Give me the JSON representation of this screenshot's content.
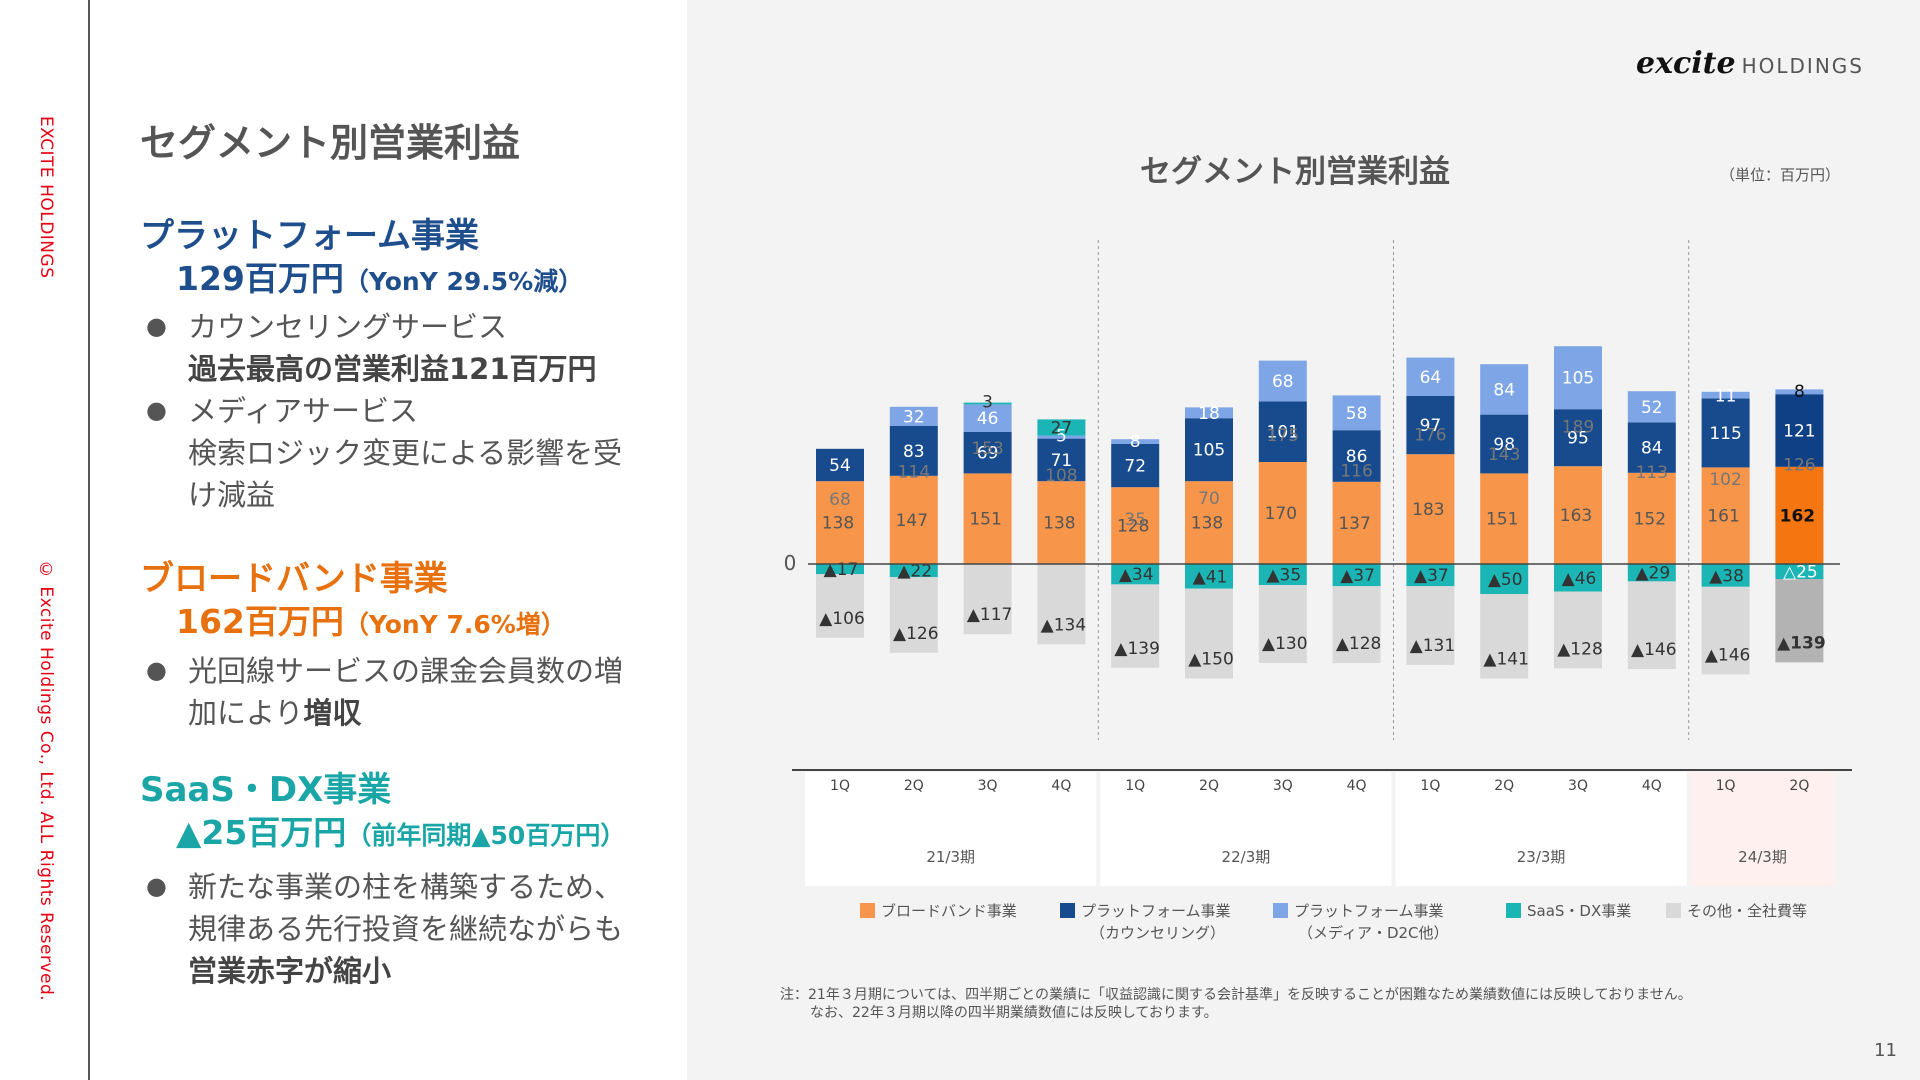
{
  "sidebar": {
    "brand_vertical": "EXCITE HOLDINGS",
    "copyright_vertical": "© Excite Holdings Co., Ltd. ALL Rights Reserved."
  },
  "page_title": "セグメント別営業利益",
  "segments": [
    {
      "name": "プラットフォーム事業",
      "value": "129百万円",
      "value_note": "（YonY 29.5%減）",
      "color": "#1f4e8c",
      "bullets": [
        [
          "カウンセリングサービス",
          "過去最高の営業利益121百万円"
        ],
        [
          "メディアサービス",
          "検索ロジック変更による影響を受",
          "け減益"
        ]
      ]
    },
    {
      "name": "ブロードバンド事業",
      "value": "162百万円",
      "value_note": "（YonY 7.6%増）",
      "color": "#e8710f",
      "bullets": [
        [
          "光回線サービスの課金会員数の増",
          "加により",
          "増収"
        ]
      ]
    },
    {
      "name": "SaaS・DX事業",
      "value": "▲25百万円",
      "value_note": "（前年同期▲50百万円）",
      "color": "#1aa6a6",
      "bullets": [
        [
          "新たな事業の柱を構築するため、",
          "規律ある先行投資を継続ながらも",
          "営業赤字が縮小"
        ]
      ]
    }
  ],
  "logo": {
    "mark": "excite",
    "sub": "HOLDINGS"
  },
  "chart_title": "セグメント別営業利益",
  "unit": "（単位：百万円）",
  "legend": [
    {
      "label": "ブロードバンド事業",
      "sub": "",
      "color": "#f7954a"
    },
    {
      "label": "プラットフォーム事業",
      "sub": "（カウンセリング）",
      "color": "#174b8e"
    },
    {
      "label": "プラットフォーム事業",
      "sub": "（メディア・D2C他）",
      "color": "#7ea6e6"
    },
    {
      "label": "SaaS・DX事業",
      "sub": "",
      "color": "#1cb5b5"
    },
    {
      "label": "その他・全社費等",
      "sub": "",
      "color": "#d9d9d9"
    }
  ],
  "footnote": [
    "注：21年３月期については、四半期ごとの業績に「収益認識に関する会計基準」を反映することが困難なため業績数値には反映しておりません。",
    "なお、22年３月期以降の四半期業績数値には反映しております。"
  ],
  "page_number": "11",
  "chart_data": {
    "type": "bar",
    "stacked": true,
    "zero_label": "0",
    "categories": [
      "1Q",
      "2Q",
      "3Q",
      "4Q",
      "1Q",
      "2Q",
      "3Q",
      "4Q",
      "1Q",
      "2Q",
      "3Q",
      "4Q",
      "1Q",
      "2Q"
    ],
    "periods": [
      {
        "label": "21/3期",
        "count": 4
      },
      {
        "label": "22/3期",
        "count": 4
      },
      {
        "label": "23/3期",
        "count": 4
      },
      {
        "label": "24/3期",
        "count": 2
      }
    ],
    "totals": [
      68,
      114,
      153,
      108,
      35,
      70,
      175,
      116,
      176,
      143,
      189,
      113,
      102,
      126
    ],
    "series": [
      {
        "name": "ブロードバンド事業",
        "values": [
          138,
          147,
          151,
          138,
          128,
          138,
          170,
          137,
          183,
          151,
          163,
          152,
          161,
          162
        ]
      },
      {
        "name": "プラットフォーム事業（カウンセリング）",
        "values": [
          54,
          83,
          69,
          71,
          72,
          105,
          101,
          86,
          97,
          98,
          95,
          84,
          115,
          121
        ]
      },
      {
        "name": "プラットフォーム事業（メディア・D2C他）",
        "values": [
          0,
          32,
          46,
          5,
          8,
          18,
          68,
          58,
          64,
          84,
          105,
          52,
          11,
          8
        ]
      },
      {
        "name": "SaaS・DX事業",
        "values": [
          0,
          0,
          3,
          27,
          0,
          0,
          0,
          0,
          0,
          0,
          0,
          0,
          0,
          0
        ]
      },
      {
        "name": "SaaS・DX事業",
        "values": [
          -17,
          -22,
          0,
          0,
          -34,
          -41,
          -35,
          -37,
          -37,
          -50,
          -46,
          -29,
          -38,
          -25
        ]
      },
      {
        "name": "その他・全社費等",
        "values": [
          -106,
          -126,
          -117,
          -134,
          -139,
          -150,
          -130,
          -128,
          -131,
          -141,
          -128,
          -146,
          -146,
          -139
        ]
      }
    ],
    "negative_prefix": "▲",
    "highlight_last_quarter": {
      "platform_counseling": "#0f3f84",
      "broadband": "#f57510",
      "saas": "#1cb5b5",
      "other": "#b3b3b3",
      "saas_label": "△25"
    },
    "grid": false,
    "legend_position": "bottom"
  }
}
